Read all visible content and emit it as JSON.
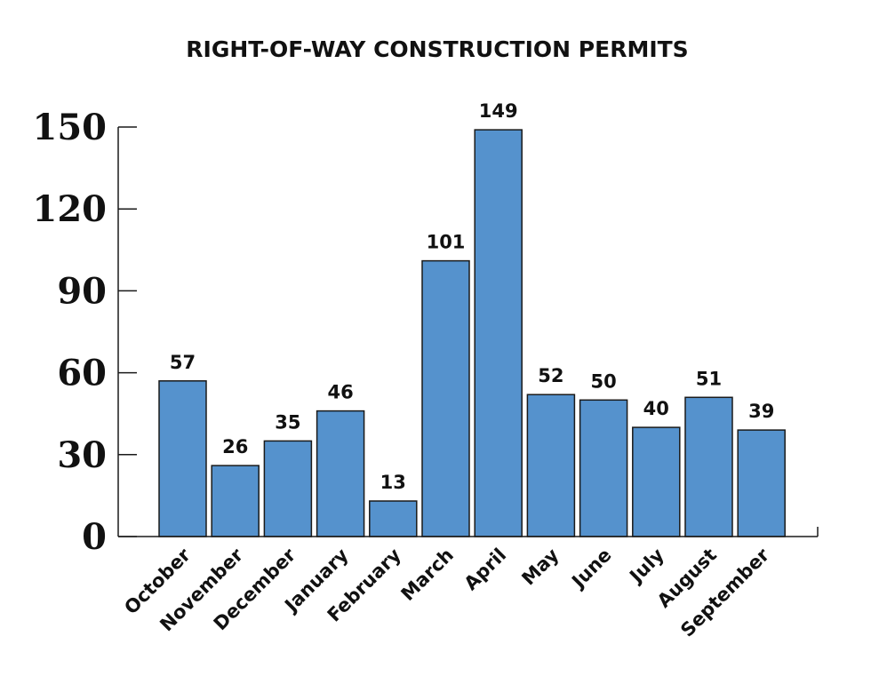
{
  "chart_data": {
    "type": "bar",
    "title": "RIGHT-OF-WAY CONSTRUCTION PERMITS",
    "xlabel": "",
    "ylabel": "",
    "categories": [
      "October",
      "November",
      "December",
      "January",
      "February",
      "March",
      "April",
      "May",
      "June",
      "July",
      "August",
      "September"
    ],
    "values": [
      57,
      26,
      35,
      46,
      13,
      101,
      149,
      52,
      50,
      40,
      51,
      39
    ],
    "data_labels": [
      "57",
      "26",
      "35",
      "46",
      "13",
      "101",
      "149",
      "52",
      "50",
      "40",
      "51",
      "39"
    ],
    "ylim": [
      0,
      150
    ],
    "yticks": [
      0,
      30,
      60,
      90,
      120,
      150
    ],
    "ytick_labels": [
      "0",
      "30",
      "60",
      "90",
      "120",
      "150"
    ],
    "grid": false,
    "legend": "none",
    "bar_color": "#5592cd"
  }
}
